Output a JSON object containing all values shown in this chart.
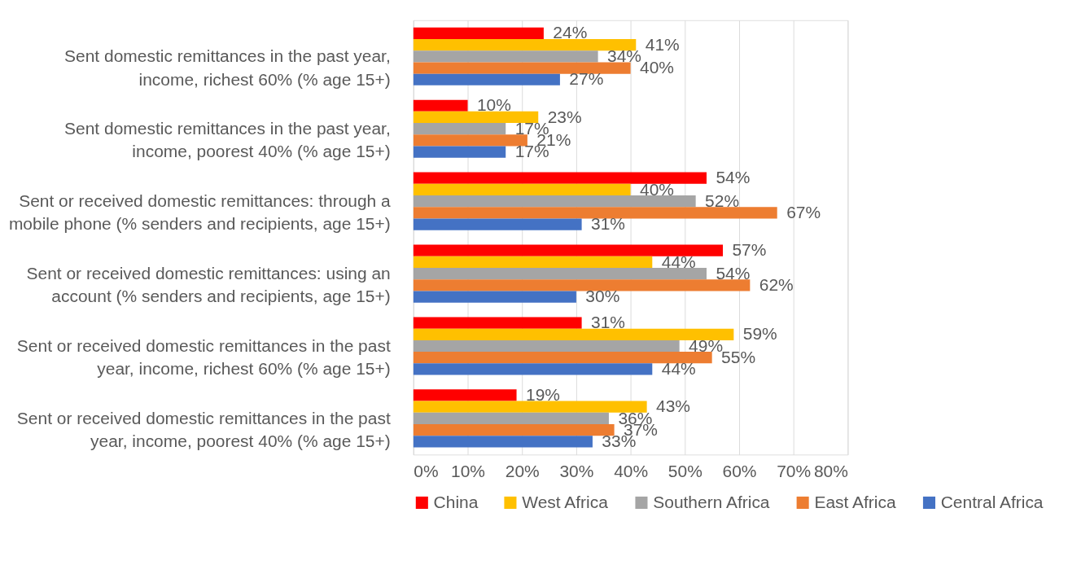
{
  "chart_data": {
    "type": "bar",
    "orientation": "horizontal",
    "categories": [
      "Sent domestic remittances in the past year, income, richest 60%  (% age 15+)",
      "Sent domestic remittances in the past year, income, poorest 40%  (% age 15+)",
      "Sent or received domestic remittances: through a mobile phone (% senders and recipients, age 15+)",
      "Sent or received domestic remittances: using an account (% senders and recipients, age 15+)",
      "Sent or received domestic remittances in the past year, income, richest 60%  (% age 15+)",
      "Sent or received domestic remittances in the past year, income, poorest 40% (% age 15+)"
    ],
    "series": [
      {
        "name": "China",
        "color": "#ff0000",
        "values": [
          24,
          10,
          54,
          57,
          31,
          19
        ]
      },
      {
        "name": "West Africa",
        "color": "#ffc000",
        "values": [
          41,
          23,
          40,
          44,
          59,
          43
        ]
      },
      {
        "name": "Southern Africa",
        "color": "#a5a5a5",
        "values": [
          34,
          17,
          52,
          54,
          49,
          36
        ]
      },
      {
        "name": "East Africa",
        "color": "#ed7d31",
        "values": [
          40,
          21,
          67,
          62,
          55,
          37
        ]
      },
      {
        "name": "Central Africa",
        "color": "#4472c4",
        "values": [
          27,
          17,
          31,
          30,
          44,
          33
        ]
      }
    ],
    "xlim": [
      0,
      80
    ],
    "xticks": [
      {
        "value": 0,
        "label": "0%"
      },
      {
        "value": 10,
        "label": "10%"
      },
      {
        "value": 20,
        "label": "20%"
      },
      {
        "value": 30,
        "label": "30%"
      },
      {
        "value": 40,
        "label": "40%"
      },
      {
        "value": 50,
        "label": "50%"
      },
      {
        "value": 60,
        "label": "60%"
      },
      {
        "value": 70,
        "label": "70%"
      },
      {
        "value": 80,
        "label": "80%"
      }
    ],
    "value_labels": [
      [
        "24%",
        "10%",
        "54%",
        "57%",
        "31%",
        "19%"
      ],
      [
        "41%",
        "23%",
        "40%",
        "44%",
        "59%",
        "43%"
      ],
      [
        "34%",
        "17%",
        "52%",
        "54%",
        "49%",
        "36%"
      ],
      [
        "40%",
        "21%",
        "67%",
        "62%",
        "55%",
        "37%"
      ],
      [
        "27%",
        "17%",
        "31%",
        "30%",
        "44%",
        "33%"
      ]
    ],
    "grid": "x",
    "legend": "bottom"
  }
}
